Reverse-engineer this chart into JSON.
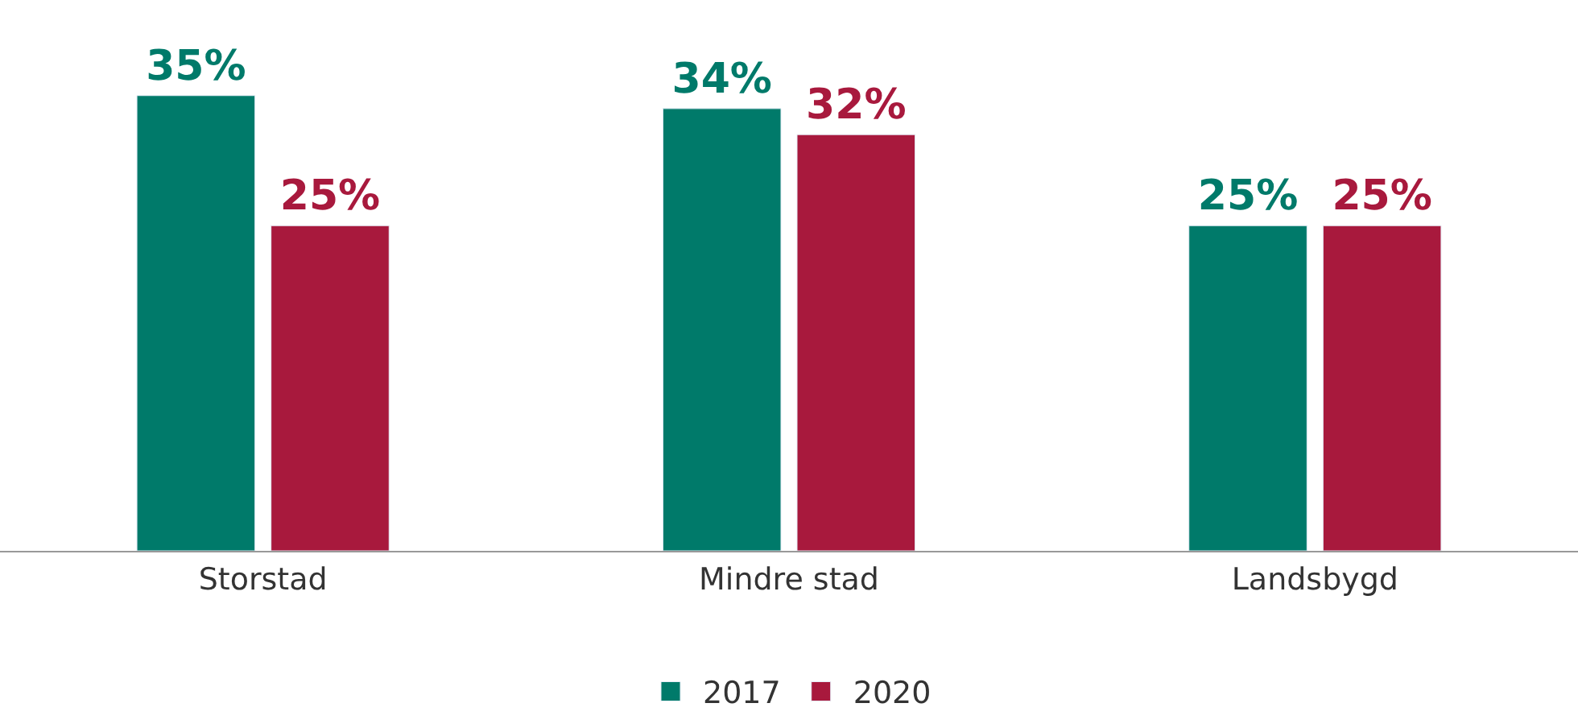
{
  "chart_data": {
    "type": "bar",
    "categories": [
      "Storstad",
      "Mindre stad",
      "Landsbygd"
    ],
    "series": [
      {
        "name": "2017",
        "color": "#007a6a",
        "values": [
          35,
          34,
          25
        ],
        "value_labels": [
          "35%",
          "34%",
          "25%"
        ]
      },
      {
        "name": "2020",
        "color": "#a8193d",
        "values": [
          25,
          32,
          25
        ],
        "value_labels": [
          "25%",
          "32%",
          "25%"
        ]
      }
    ],
    "legend": "bottom",
    "tick_labels": "x"
  }
}
